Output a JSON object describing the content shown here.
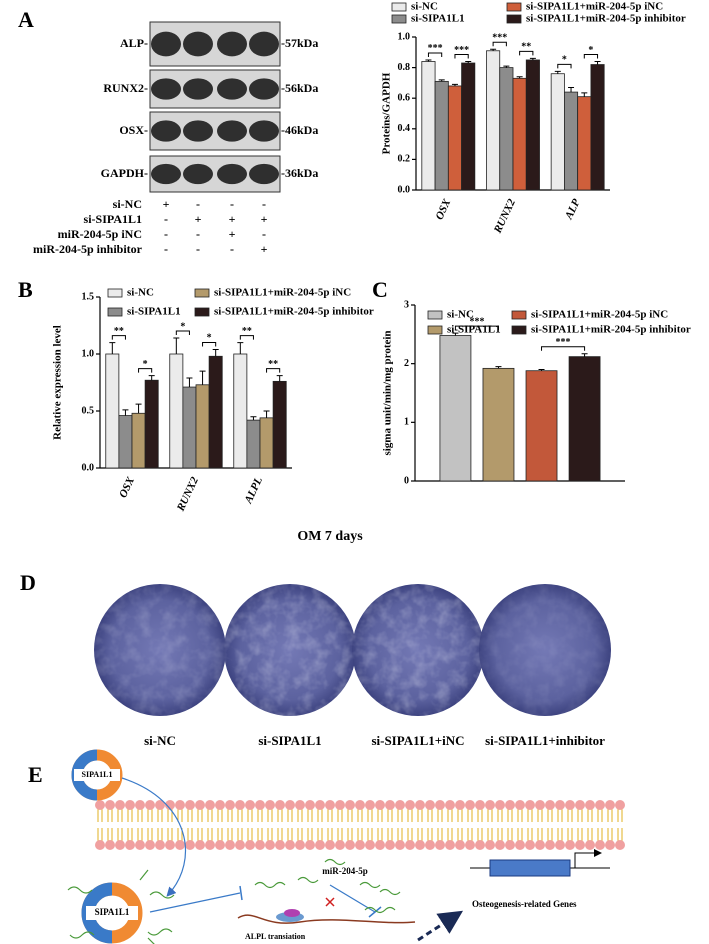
{
  "panel_labels": [
    "A",
    "B",
    "C",
    "D",
    "E"
  ],
  "blot": {
    "bands": [
      "ALP-",
      "RUNX2-",
      "OSX-",
      "GAPDH-"
    ],
    "sizes": [
      "-57kDa",
      "-56kDa",
      "-46kDa",
      "-36kDa"
    ],
    "conditions": [
      {
        "name": "si-NC",
        "signs": [
          "+",
          "-",
          "-",
          "-"
        ]
      },
      {
        "name": "si-SIPA1L1",
        "signs": [
          "-",
          "+",
          "+",
          "+"
        ]
      },
      {
        "name": "miR-204-5p iNC",
        "signs": [
          "-",
          "-",
          "+",
          "-"
        ]
      },
      {
        "name": "miR-204-5p inhibitor",
        "signs": [
          "-",
          "-",
          "-",
          "+"
        ]
      }
    ]
  },
  "chart_data": [
    {
      "type": "bar",
      "ylabel": "Proteins/GAPDH",
      "categories": [
        "OSX",
        "RUNX2",
        "ALP"
      ],
      "legend": "top",
      "series": [
        {
          "name": "si-NC",
          "color": "#ebebeb",
          "values": [
            0.84,
            0.91,
            0.76
          ],
          "errors": [
            0.01,
            0.01,
            0.015
          ]
        },
        {
          "name": "si-SIPA1L1",
          "color": "#8c8c8c",
          "values": [
            0.71,
            0.8,
            0.64
          ],
          "errors": [
            0.01,
            0.01,
            0.03
          ]
        },
        {
          "name": "si-SIPA1L1+miR-204-5p iNC",
          "color": "#cf5f3b",
          "values": [
            0.68,
            0.73,
            0.61
          ],
          "errors": [
            0.01,
            0.01,
            0.025
          ]
        },
        {
          "name": "si-SIPA1L1+miR-204-5p inhibitor",
          "color": "#2b1a1a",
          "values": [
            0.83,
            0.85,
            0.82
          ],
          "errors": [
            0.01,
            0.01,
            0.02
          ]
        }
      ],
      "ylim": [
        0,
        1
      ],
      "yticks": [
        {
          "value": 0,
          "label": "0.0"
        },
        0.2,
        0.4,
        0.6,
        0.8,
        {
          "value": 1,
          "label": "1.0"
        }
      ],
      "significance": [
        [
          "***",
          "***"
        ],
        [
          "***",
          "**"
        ],
        [
          "*",
          "*"
        ]
      ]
    },
    {
      "type": "bar",
      "ylabel": "Relative expression level",
      "categories": [
        "OSX",
        "RUNX2",
        "ALPL"
      ],
      "legend": "top",
      "series": [
        {
          "name": "si-NC",
          "color": "#ebebeb",
          "values": [
            1.0,
            1.0,
            1.0
          ],
          "errors": [
            0.1,
            0.14,
            0.1
          ]
        },
        {
          "name": "si-SIPA1L1",
          "color": "#8c8c8c",
          "values": [
            0.46,
            0.71,
            0.42
          ],
          "errors": [
            0.05,
            0.08,
            0.03
          ]
        },
        {
          "name": "si-SIPA1L1+miR-204-5p iNC",
          "color": "#b39a6b",
          "values": [
            0.48,
            0.73,
            0.44
          ],
          "errors": [
            0.08,
            0.12,
            0.06
          ]
        },
        {
          "name": "si-SIPA1L1+miR-204-5p inhibitor",
          "color": "#2b1a1a",
          "values": [
            0.77,
            0.98,
            0.76
          ],
          "errors": [
            0.04,
            0.06,
            0.05
          ]
        }
      ],
      "ylim": [
        0,
        1.5
      ],
      "yticks": [
        {
          "value": 0,
          "label": "0.0"
        },
        0.5,
        {
          "value": 1,
          "label": "1.0"
        },
        1.5
      ],
      "significance": [
        [
          "**",
          "*"
        ],
        [
          "*",
          "*"
        ],
        [
          "**",
          "**"
        ]
      ]
    },
    {
      "type": "bar",
      "ylabel": "sigma unit/min/mg protein",
      "categories": [
        null
      ],
      "legend": "top",
      "series": [
        {
          "name": "si-NC",
          "color": "#c2c2c2",
          "values": [
            2.48
          ],
          "errors": [
            0.04
          ]
        },
        {
          "name": "si-SIPA1L1",
          "color": "#b39a6b",
          "values": [
            1.92
          ],
          "errors": [
            0.03
          ]
        },
        {
          "name": "si-SIPA1L1+miR-204-5p iNC",
          "color": "#c2583a",
          "values": [
            1.88
          ],
          "errors": [
            0.02
          ]
        },
        {
          "name": "si-SIPA1L1+miR-204-5p inhibitor",
          "color": "#2b1a1a",
          "values": [
            2.12
          ],
          "errors": [
            0.05
          ]
        }
      ],
      "ylim": [
        0,
        3
      ],
      "yticks": [
        0,
        1,
        2,
        3
      ],
      "significance": [
        [
          "***",
          "***"
        ]
      ]
    }
  ],
  "x_caption": "OM 7 days",
  "images": {
    "labels": [
      "si-NC",
      "si-SIPA1L1",
      "si-SIPA1L1+iNC",
      "si-SIPA1L1+inhibitor"
    ]
  },
  "diagram": {
    "proteins": [
      "SIPA1L1",
      "SIPA1L1"
    ],
    "mirna": "miR-204-5p",
    "translation": "ALPL transiation",
    "genes": "Osteogenesis-related Genes"
  }
}
